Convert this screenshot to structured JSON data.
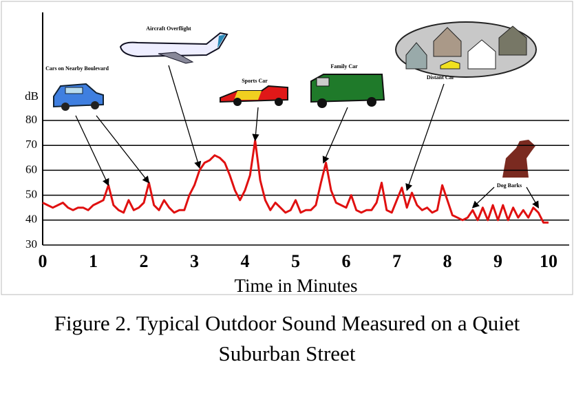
{
  "chart_data": {
    "type": "line",
    "title": "Figure 2. Typical Outdoor Sound Measured on a Quiet Suburban Street",
    "x_label": "Time in Minutes",
    "y_label": "dB",
    "xlim": [
      0,
      10
    ],
    "xticks": [
      0,
      1,
      2,
      3,
      4,
      5,
      6,
      7,
      8,
      9,
      10
    ],
    "ylim": [
      30,
      80
    ],
    "yticks": [
      30,
      40,
      50,
      60,
      70,
      80
    ],
    "grid": true,
    "series": [
      {
        "color": "#e01010",
        "x": [
          0,
          0.1,
          0.2,
          0.3,
          0.4,
          0.5,
          0.6,
          0.7,
          0.8,
          0.9,
          1,
          1.1,
          1.2,
          1.3,
          1.4,
          1.5,
          1.6,
          1.7,
          1.8,
          1.9,
          2,
          2.1,
          2.2,
          2.3,
          2.4,
          2.5,
          2.6,
          2.7,
          2.8,
          2.9,
          3,
          3.1,
          3.2,
          3.3,
          3.4,
          3.5,
          3.6,
          3.7,
          3.8,
          3.9,
          4,
          4.1,
          4.2,
          4.3,
          4.4,
          4.5,
          4.6,
          4.7,
          4.8,
          4.9,
          5,
          5.1,
          5.2,
          5.3,
          5.4,
          5.5,
          5.6,
          5.7,
          5.8,
          5.9,
          6,
          6.1,
          6.2,
          6.3,
          6.4,
          6.5,
          6.6,
          6.7,
          6.8,
          6.9,
          7,
          7.1,
          7.2,
          7.3,
          7.4,
          7.5,
          7.6,
          7.7,
          7.8,
          7.9,
          8,
          8.1,
          8.2,
          8.3,
          8.4,
          8.5,
          8.6,
          8.7,
          8.8,
          8.9,
          9,
          9.1,
          9.2,
          9.3,
          9.4,
          9.5,
          9.6,
          9.7,
          9.8,
          9.9,
          10
        ],
        "values": [
          47,
          46,
          45,
          46,
          47,
          45,
          44,
          45,
          45,
          44,
          46,
          47,
          48,
          54,
          46,
          44,
          43,
          48,
          44,
          45,
          47,
          55,
          46,
          44,
          48,
          45,
          43,
          44,
          44,
          50,
          54,
          60,
          63,
          64,
          66,
          65,
          63,
          58,
          52,
          48,
          52,
          58,
          72,
          56,
          48,
          44,
          47,
          45,
          43,
          44,
          48,
          43,
          44,
          44,
          46,
          55,
          63,
          52,
          47,
          46,
          45,
          50,
          44,
          43,
          44,
          44,
          47,
          55,
          44,
          43,
          48,
          53,
          45,
          51,
          46,
          44,
          45,
          43,
          44,
          54,
          48,
          42,
          41,
          40,
          41,
          44,
          40,
          45,
          40,
          46,
          40,
          46,
          40,
          45,
          41,
          44,
          41,
          45,
          43,
          39,
          39
        ]
      }
    ],
    "annotations": [
      {
        "text": "Cars on Nearby Boulevard",
        "points": [
          [
            1.3,
            54
          ],
          [
            2.1,
            55
          ]
        ]
      },
      {
        "text": "Aircraft Overflight",
        "points": [
          [
            3.1,
            61
          ]
        ]
      },
      {
        "text": "Sports Car",
        "points": [
          [
            4.2,
            72
          ]
        ]
      },
      {
        "text": "Family Car",
        "points": [
          [
            5.55,
            63
          ]
        ]
      },
      {
        "text": "Distant Car",
        "points": [
          [
            7.2,
            52
          ]
        ]
      },
      {
        "text": "Dog Barks",
        "points": [
          [
            8.5,
            45
          ],
          [
            9.8,
            45
          ]
        ]
      }
    ]
  }
}
